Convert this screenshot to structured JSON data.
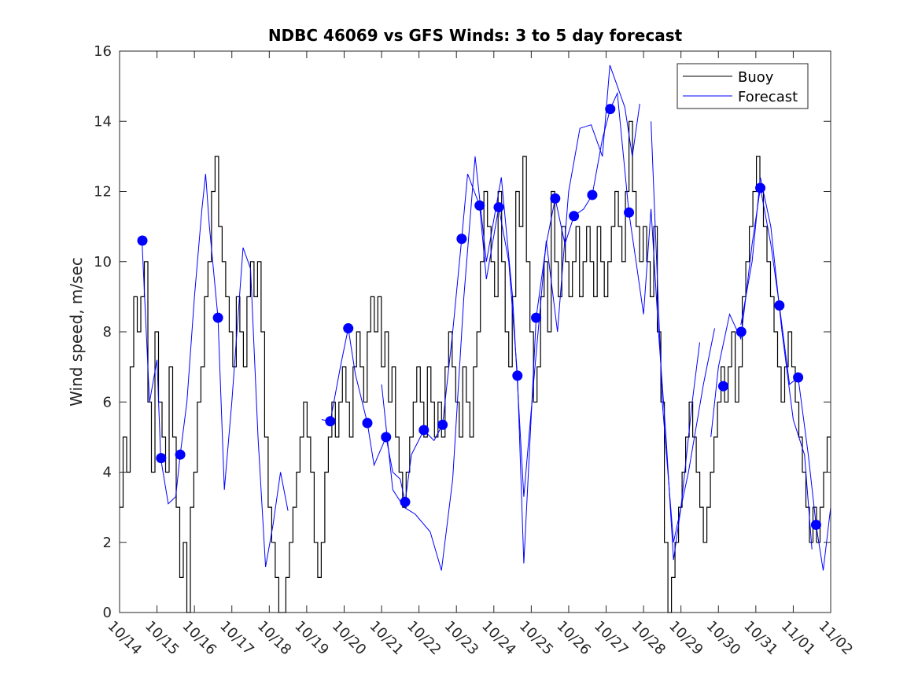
{
  "chart_data": {
    "type": "line",
    "title": "NDBC 46069 vs GFS Winds: 3 to 5 day forecast",
    "xlabel": "",
    "ylabel": "Wind speed, m/sec",
    "ylim": [
      0,
      16
    ],
    "yticks": [
      0,
      2,
      4,
      6,
      8,
      10,
      12,
      14,
      16
    ],
    "xlim_days": [
      0,
      19
    ],
    "xtick_labels": [
      "10/14",
      "10/15",
      "10/16",
      "10/17",
      "10/18",
      "10/19",
      "10/20",
      "10/21",
      "10/22",
      "10/23",
      "10/24",
      "10/25",
      "10/26",
      "10/27",
      "10/28",
      "10/29",
      "10/30",
      "10/31",
      "11/01",
      "11/02"
    ],
    "legend": {
      "placement": "top-right",
      "entries": [
        "Buoy",
        "Forecast"
      ]
    },
    "colors": {
      "buoy": "#000000",
      "forecast": "#0000ff",
      "dots": "#0000ff"
    },
    "buoy": {
      "name": "Buoy",
      "x_start_day": 0,
      "x_end_day": 19,
      "values": [
        3,
        5,
        4,
        7,
        9,
        8,
        9,
        10,
        6,
        4,
        8,
        6,
        5,
        4,
        7,
        5,
        3,
        1,
        2,
        0,
        3,
        4,
        6,
        7,
        9,
        10,
        12,
        13,
        11,
        10,
        9,
        8,
        7,
        9,
        8,
        7,
        9,
        10,
        9,
        10,
        8,
        5,
        3,
        2,
        1,
        0,
        0,
        1,
        2,
        3,
        4,
        5,
        6,
        5,
        4,
        2,
        1,
        2,
        4,
        5,
        6,
        5,
        6,
        7,
        6,
        5,
        7,
        8,
        7,
        6,
        8,
        9,
        8,
        9,
        7,
        8,
        6,
        7,
        5,
        4,
        3,
        4,
        5,
        6,
        7,
        6,
        5,
        7,
        6,
        5,
        6,
        5,
        7,
        8,
        7,
        6,
        5,
        7,
        6,
        5,
        7,
        8,
        10,
        12,
        11,
        10,
        9,
        12,
        10,
        8,
        7,
        9,
        12,
        11,
        13,
        10,
        8,
        6,
        7,
        9,
        10,
        8,
        12,
        10,
        9,
        11,
        10,
        9,
        10,
        11,
        9,
        10,
        11,
        10,
        9,
        11,
        10,
        9,
        10,
        11,
        12,
        11,
        10,
        12,
        14,
        12,
        11,
        10,
        11,
        10,
        9,
        11,
        8,
        6,
        2,
        0,
        1,
        2,
        3,
        4,
        5,
        6,
        5,
        4,
        3,
        2,
        3,
        4,
        5,
        6,
        7,
        6,
        7,
        8,
        6,
        7,
        9,
        10,
        11,
        12,
        13,
        12,
        11,
        10,
        9,
        8,
        7,
        6,
        7,
        8,
        7,
        6,
        5,
        4,
        3,
        2,
        3,
        2,
        3,
        4,
        5
      ]
    },
    "forecast_series": [
      {
        "name": "Forecast",
        "points": [
          [
            0.6,
            10.6
          ],
          [
            0.8,
            6
          ],
          [
            1.0,
            7.2
          ],
          [
            1.1,
            4.4
          ],
          [
            1.3,
            3.1
          ],
          [
            1.5,
            3.3
          ],
          [
            1.62,
            4.5
          ],
          [
            1.8,
            6
          ],
          [
            2.0,
            9
          ],
          [
            2.2,
            11.5
          ],
          [
            2.3,
            12.5
          ],
          [
            2.4,
            11
          ],
          [
            2.63,
            8.4
          ],
          [
            2.8,
            3.5
          ],
          [
            3.0,
            6
          ],
          [
            3.3,
            10.4
          ],
          [
            3.5,
            9.8
          ],
          [
            3.7,
            5
          ],
          [
            3.9,
            1.3
          ],
          [
            4.1,
            2.5
          ],
          [
            4.3,
            4
          ],
          [
            4.5,
            2.9
          ]
        ]
      },
      {
        "name": "Forecast",
        "points": [
          [
            5.4,
            5.5
          ],
          [
            5.63,
            5.45
          ],
          [
            5.9,
            7
          ],
          [
            6.11,
            8.1
          ],
          [
            6.3,
            6.8
          ],
          [
            6.62,
            5.4
          ],
          [
            6.8,
            4.2
          ],
          [
            7.12,
            5.0
          ],
          [
            7.3,
            4
          ],
          [
            7.5,
            3.8
          ],
          [
            7.63,
            3.15
          ],
          [
            7.8,
            4.5
          ],
          [
            8.13,
            5.2
          ],
          [
            8.4,
            4.9
          ],
          [
            8.63,
            5.35
          ],
          [
            8.9,
            8
          ],
          [
            9.14,
            10.65
          ],
          [
            9.3,
            12.5
          ],
          [
            9.62,
            11.6
          ],
          [
            9.8,
            9.5
          ],
          [
            10.13,
            11.55
          ],
          [
            10.4,
            10
          ],
          [
            10.63,
            6.75
          ],
          [
            10.8,
            1.4
          ],
          [
            11.13,
            8.4
          ],
          [
            11.4,
            10.5
          ],
          [
            11.64,
            11.8
          ],
          [
            11.9,
            10.5
          ],
          [
            12.14,
            11.3
          ],
          [
            12.4,
            11.5
          ],
          [
            12.63,
            11.9
          ],
          [
            12.9,
            13.5
          ],
          [
            13.11,
            14.35
          ],
          [
            13.3,
            14.8
          ],
          [
            13.61,
            11.4
          ],
          [
            13.8,
            10
          ],
          [
            14.0,
            8.5
          ],
          [
            14.2,
            11.5
          ],
          [
            14.4,
            8
          ],
          [
            14.6,
            5
          ],
          [
            14.8,
            1.5
          ],
          [
            15.0,
            3
          ],
          [
            15.3,
            6
          ],
          [
            15.5,
            7.7
          ]
        ]
      },
      {
        "name": "Forecast",
        "points": [
          [
            7.0,
            6.5
          ],
          [
            7.3,
            3.5
          ],
          [
            7.6,
            3
          ],
          [
            7.9,
            2.8
          ],
          [
            8.3,
            2.3
          ],
          [
            8.6,
            1.2
          ],
          [
            8.9,
            3.8
          ],
          [
            9.2,
            9
          ],
          [
            9.5,
            13
          ],
          [
            9.8,
            10
          ],
          [
            10.2,
            12.4
          ],
          [
            10.5,
            9
          ],
          [
            10.8,
            3.3
          ],
          [
            11.1,
            7
          ],
          [
            11.4,
            10.6
          ],
          [
            11.7,
            8
          ],
          [
            12.0,
            12
          ],
          [
            12.3,
            13.8
          ],
          [
            12.6,
            13.9
          ],
          [
            12.9,
            13
          ],
          [
            13.1,
            15.6
          ],
          [
            13.3,
            15
          ],
          [
            13.5,
            14.4
          ],
          [
            13.7,
            13
          ],
          [
            13.9,
            14.5
          ]
        ]
      },
      {
        "name": "Forecast",
        "points": [
          [
            14.2,
            14
          ],
          [
            14.5,
            6
          ],
          [
            14.8,
            2
          ],
          [
            15.2,
            4
          ],
          [
            15.6,
            6.5
          ],
          [
            15.9,
            8.1
          ]
        ]
      },
      {
        "name": "Forecast",
        "points": [
          [
            15.8,
            5
          ],
          [
            16.0,
            7
          ],
          [
            16.3,
            8.5
          ],
          [
            16.6,
            7.8
          ],
          [
            16.9,
            10.5
          ],
          [
            17.12,
            12.1
          ],
          [
            17.4,
            10.5
          ],
          [
            17.63,
            8.75
          ],
          [
            17.9,
            6.5
          ],
          [
            18.13,
            6.7
          ],
          [
            18.4,
            4.5
          ],
          [
            18.61,
            2.5
          ],
          [
            18.8,
            1.2
          ],
          [
            19.0,
            3
          ]
        ]
      },
      {
        "name": "Forecast",
        "points": [
          [
            16.6,
            8.2
          ],
          [
            16.9,
            10
          ],
          [
            17.12,
            12.4
          ],
          [
            17.4,
            11
          ],
          [
            17.7,
            8
          ],
          [
            18.0,
            5.5
          ],
          [
            18.3,
            4.5
          ],
          [
            18.5,
            1.8
          ]
        ]
      }
    ],
    "forecast_dots": [
      [
        0.61,
        10.6
      ],
      [
        1.11,
        4.4
      ],
      [
        1.62,
        4.5
      ],
      [
        2.63,
        8.4
      ],
      [
        5.63,
        5.45
      ],
      [
        6.11,
        8.1
      ],
      [
        6.62,
        5.4
      ],
      [
        7.12,
        5.0
      ],
      [
        7.63,
        3.15
      ],
      [
        8.13,
        5.2
      ],
      [
        8.63,
        5.35
      ],
      [
        9.14,
        10.65
      ],
      [
        9.62,
        11.6
      ],
      [
        10.13,
        11.55
      ],
      [
        10.63,
        6.75
      ],
      [
        11.13,
        8.4
      ],
      [
        11.64,
        11.8
      ],
      [
        12.14,
        11.3
      ],
      [
        12.63,
        11.9
      ],
      [
        13.11,
        14.35
      ],
      [
        13.61,
        11.4
      ],
      [
        16.13,
        6.45
      ],
      [
        16.61,
        8.0
      ],
      [
        17.12,
        12.1
      ],
      [
        17.63,
        8.75
      ],
      [
        18.13,
        6.7
      ],
      [
        18.61,
        2.5
      ]
    ]
  }
}
